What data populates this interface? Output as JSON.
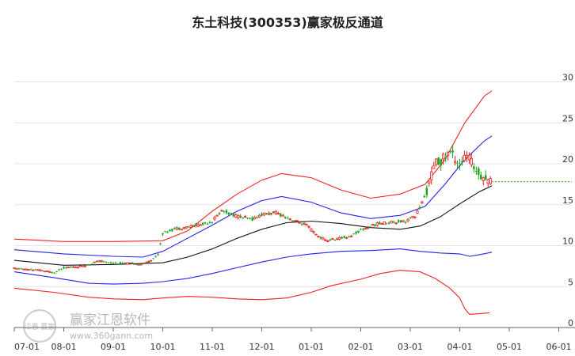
{
  "chart_data": {
    "type": "candlestick-channel",
    "title": "东土科技(300353)赢家极反通道",
    "x_ticks": [
      "07-01",
      "08-01",
      "09-01",
      "10-01",
      "11-01",
      "12-01",
      "01-01",
      "02-01",
      "03-01",
      "04-01",
      "05-01",
      "06-01"
    ],
    "y_ticks": [
      "0",
      "5",
      "10",
      "15",
      "20",
      "25",
      "30"
    ],
    "ylim": [
      0,
      30
    ],
    "price_path": [
      {
        "m": 0.0,
        "p": 7.2
      },
      {
        "m": 0.5,
        "p": 7.0
      },
      {
        "m": 0.8,
        "p": 6.7
      },
      {
        "m": 1.0,
        "p": 7.3
      },
      {
        "m": 1.4,
        "p": 7.5
      },
      {
        "m": 1.7,
        "p": 8.1
      },
      {
        "m": 2.0,
        "p": 7.9
      },
      {
        "m": 2.4,
        "p": 7.8
      },
      {
        "m": 2.6,
        "p": 7.7
      },
      {
        "m": 2.9,
        "p": 8.8
      },
      {
        "m": 3.0,
        "p": 11.5
      },
      {
        "m": 3.2,
        "p": 12.0
      },
      {
        "m": 3.5,
        "p": 12.3
      },
      {
        "m": 3.8,
        "p": 12.6
      },
      {
        "m": 4.0,
        "p": 13.0
      },
      {
        "m": 4.2,
        "p": 14.3
      },
      {
        "m": 4.5,
        "p": 13.6
      },
      {
        "m": 4.8,
        "p": 13.2
      },
      {
        "m": 5.0,
        "p": 13.8
      },
      {
        "m": 5.3,
        "p": 14.0
      },
      {
        "m": 5.6,
        "p": 13.2
      },
      {
        "m": 5.9,
        "p": 12.5
      },
      {
        "m": 6.1,
        "p": 11.3
      },
      {
        "m": 6.3,
        "p": 10.6
      },
      {
        "m": 6.6,
        "p": 10.9
      },
      {
        "m": 6.8,
        "p": 11.2
      },
      {
        "m": 7.0,
        "p": 11.9
      },
      {
        "m": 7.3,
        "p": 12.6
      },
      {
        "m": 7.6,
        "p": 12.9
      },
      {
        "m": 7.9,
        "p": 13.0
      },
      {
        "m": 8.1,
        "p": 13.6
      },
      {
        "m": 8.3,
        "p": 16.0
      },
      {
        "m": 8.5,
        "p": 20.0
      },
      {
        "m": 8.65,
        "p": 20.5
      },
      {
        "m": 8.8,
        "p": 21.5
      },
      {
        "m": 9.0,
        "p": 20.0
      },
      {
        "m": 9.15,
        "p": 21.0
      },
      {
        "m": 9.3,
        "p": 19.5
      },
      {
        "m": 9.45,
        "p": 18.5
      },
      {
        "m": 9.65,
        "p": 17.8
      }
    ],
    "bands": [
      {
        "name": "upper-outer",
        "color": "#ee2222",
        "points": [
          [
            0,
            10.8
          ],
          [
            1,
            10.5
          ],
          [
            2,
            10.5
          ],
          [
            3,
            10.6
          ],
          [
            3.5,
            11.8
          ],
          [
            4,
            14.2
          ],
          [
            4.5,
            16.3
          ],
          [
            5,
            18.0
          ],
          [
            5.4,
            18.8
          ],
          [
            6,
            18.3
          ],
          [
            6.6,
            16.8
          ],
          [
            7.2,
            15.8
          ],
          [
            7.8,
            16.3
          ],
          [
            8.3,
            17.5
          ],
          [
            8.7,
            20.5
          ],
          [
            9.1,
            25.0
          ],
          [
            9.5,
            28.3
          ],
          [
            9.65,
            28.9
          ]
        ]
      },
      {
        "name": "upper-inner",
        "color": "#2222ee",
        "points": [
          [
            0,
            9.5
          ],
          [
            1,
            9.0
          ],
          [
            2,
            8.7
          ],
          [
            2.6,
            8.6
          ],
          [
            3,
            9.3
          ],
          [
            3.5,
            10.9
          ],
          [
            4,
            12.5
          ],
          [
            4.5,
            14.2
          ],
          [
            5,
            15.5
          ],
          [
            5.4,
            16.0
          ],
          [
            6,
            15.3
          ],
          [
            6.6,
            14.0
          ],
          [
            7.2,
            13.3
          ],
          [
            7.8,
            13.7
          ],
          [
            8.3,
            14.8
          ],
          [
            8.7,
            17.5
          ],
          [
            9.1,
            20.5
          ],
          [
            9.5,
            22.8
          ],
          [
            9.65,
            23.4
          ]
        ]
      },
      {
        "name": "middle",
        "color": "#111111",
        "points": [
          [
            0,
            8.2
          ],
          [
            1,
            7.6
          ],
          [
            2,
            7.7
          ],
          [
            3,
            7.9
          ],
          [
            3.5,
            8.6
          ],
          [
            4,
            9.6
          ],
          [
            4.5,
            10.9
          ],
          [
            5,
            12.0
          ],
          [
            5.5,
            12.8
          ],
          [
            6,
            13.0
          ],
          [
            6.6,
            12.7
          ],
          [
            7.2,
            12.2
          ],
          [
            7.8,
            12.0
          ],
          [
            8.2,
            12.4
          ],
          [
            8.6,
            13.5
          ],
          [
            9.0,
            15.1
          ],
          [
            9.4,
            16.6
          ],
          [
            9.65,
            17.3
          ]
        ]
      },
      {
        "name": "lower-inner",
        "color": "#2222ee",
        "points": [
          [
            0,
            6.8
          ],
          [
            0.8,
            6.1
          ],
          [
            1.5,
            5.4
          ],
          [
            2,
            5.3
          ],
          [
            2.6,
            5.4
          ],
          [
            3,
            5.6
          ],
          [
            3.5,
            6.0
          ],
          [
            4,
            6.6
          ],
          [
            4.5,
            7.3
          ],
          [
            5,
            8.0
          ],
          [
            5.5,
            8.6
          ],
          [
            6,
            9.0
          ],
          [
            6.6,
            9.3
          ],
          [
            7.2,
            9.4
          ],
          [
            7.8,
            9.6
          ],
          [
            8.2,
            9.3
          ],
          [
            8.6,
            9.1
          ],
          [
            9.0,
            9.0
          ],
          [
            9.2,
            8.7
          ],
          [
            9.4,
            8.9
          ],
          [
            9.65,
            9.2
          ]
        ]
      },
      {
        "name": "lower-outer",
        "color": "#ee2222",
        "points": [
          [
            0,
            4.8
          ],
          [
            0.8,
            4.3
          ],
          [
            1.5,
            3.7
          ],
          [
            2,
            3.5
          ],
          [
            2.6,
            3.4
          ],
          [
            3,
            3.6
          ],
          [
            3.5,
            3.8
          ],
          [
            4,
            3.7
          ],
          [
            4.5,
            3.5
          ],
          [
            5,
            3.4
          ],
          [
            5.5,
            3.6
          ],
          [
            6,
            4.3
          ],
          [
            6.4,
            5.1
          ],
          [
            7,
            5.9
          ],
          [
            7.4,
            6.6
          ],
          [
            7.8,
            7.0
          ],
          [
            8.2,
            6.8
          ],
          [
            8.5,
            6.0
          ],
          [
            8.8,
            4.8
          ],
          [
            9.0,
            3.6
          ],
          [
            9.1,
            2.3
          ],
          [
            9.2,
            1.6
          ],
          [
            9.4,
            1.7
          ],
          [
            9.6,
            1.8
          ]
        ]
      }
    ],
    "last_price": 17.8,
    "colors": {
      "up": "#e81f1f",
      "down": "#1aa21a",
      "grid": "#e4e4e4",
      "axis": "#666666",
      "dashed": "#1aa21a"
    }
  },
  "watermark": {
    "brand": "赢家江恩软件",
    "url": "www.360gann.com",
    "seal": "江恩 赢家"
  }
}
